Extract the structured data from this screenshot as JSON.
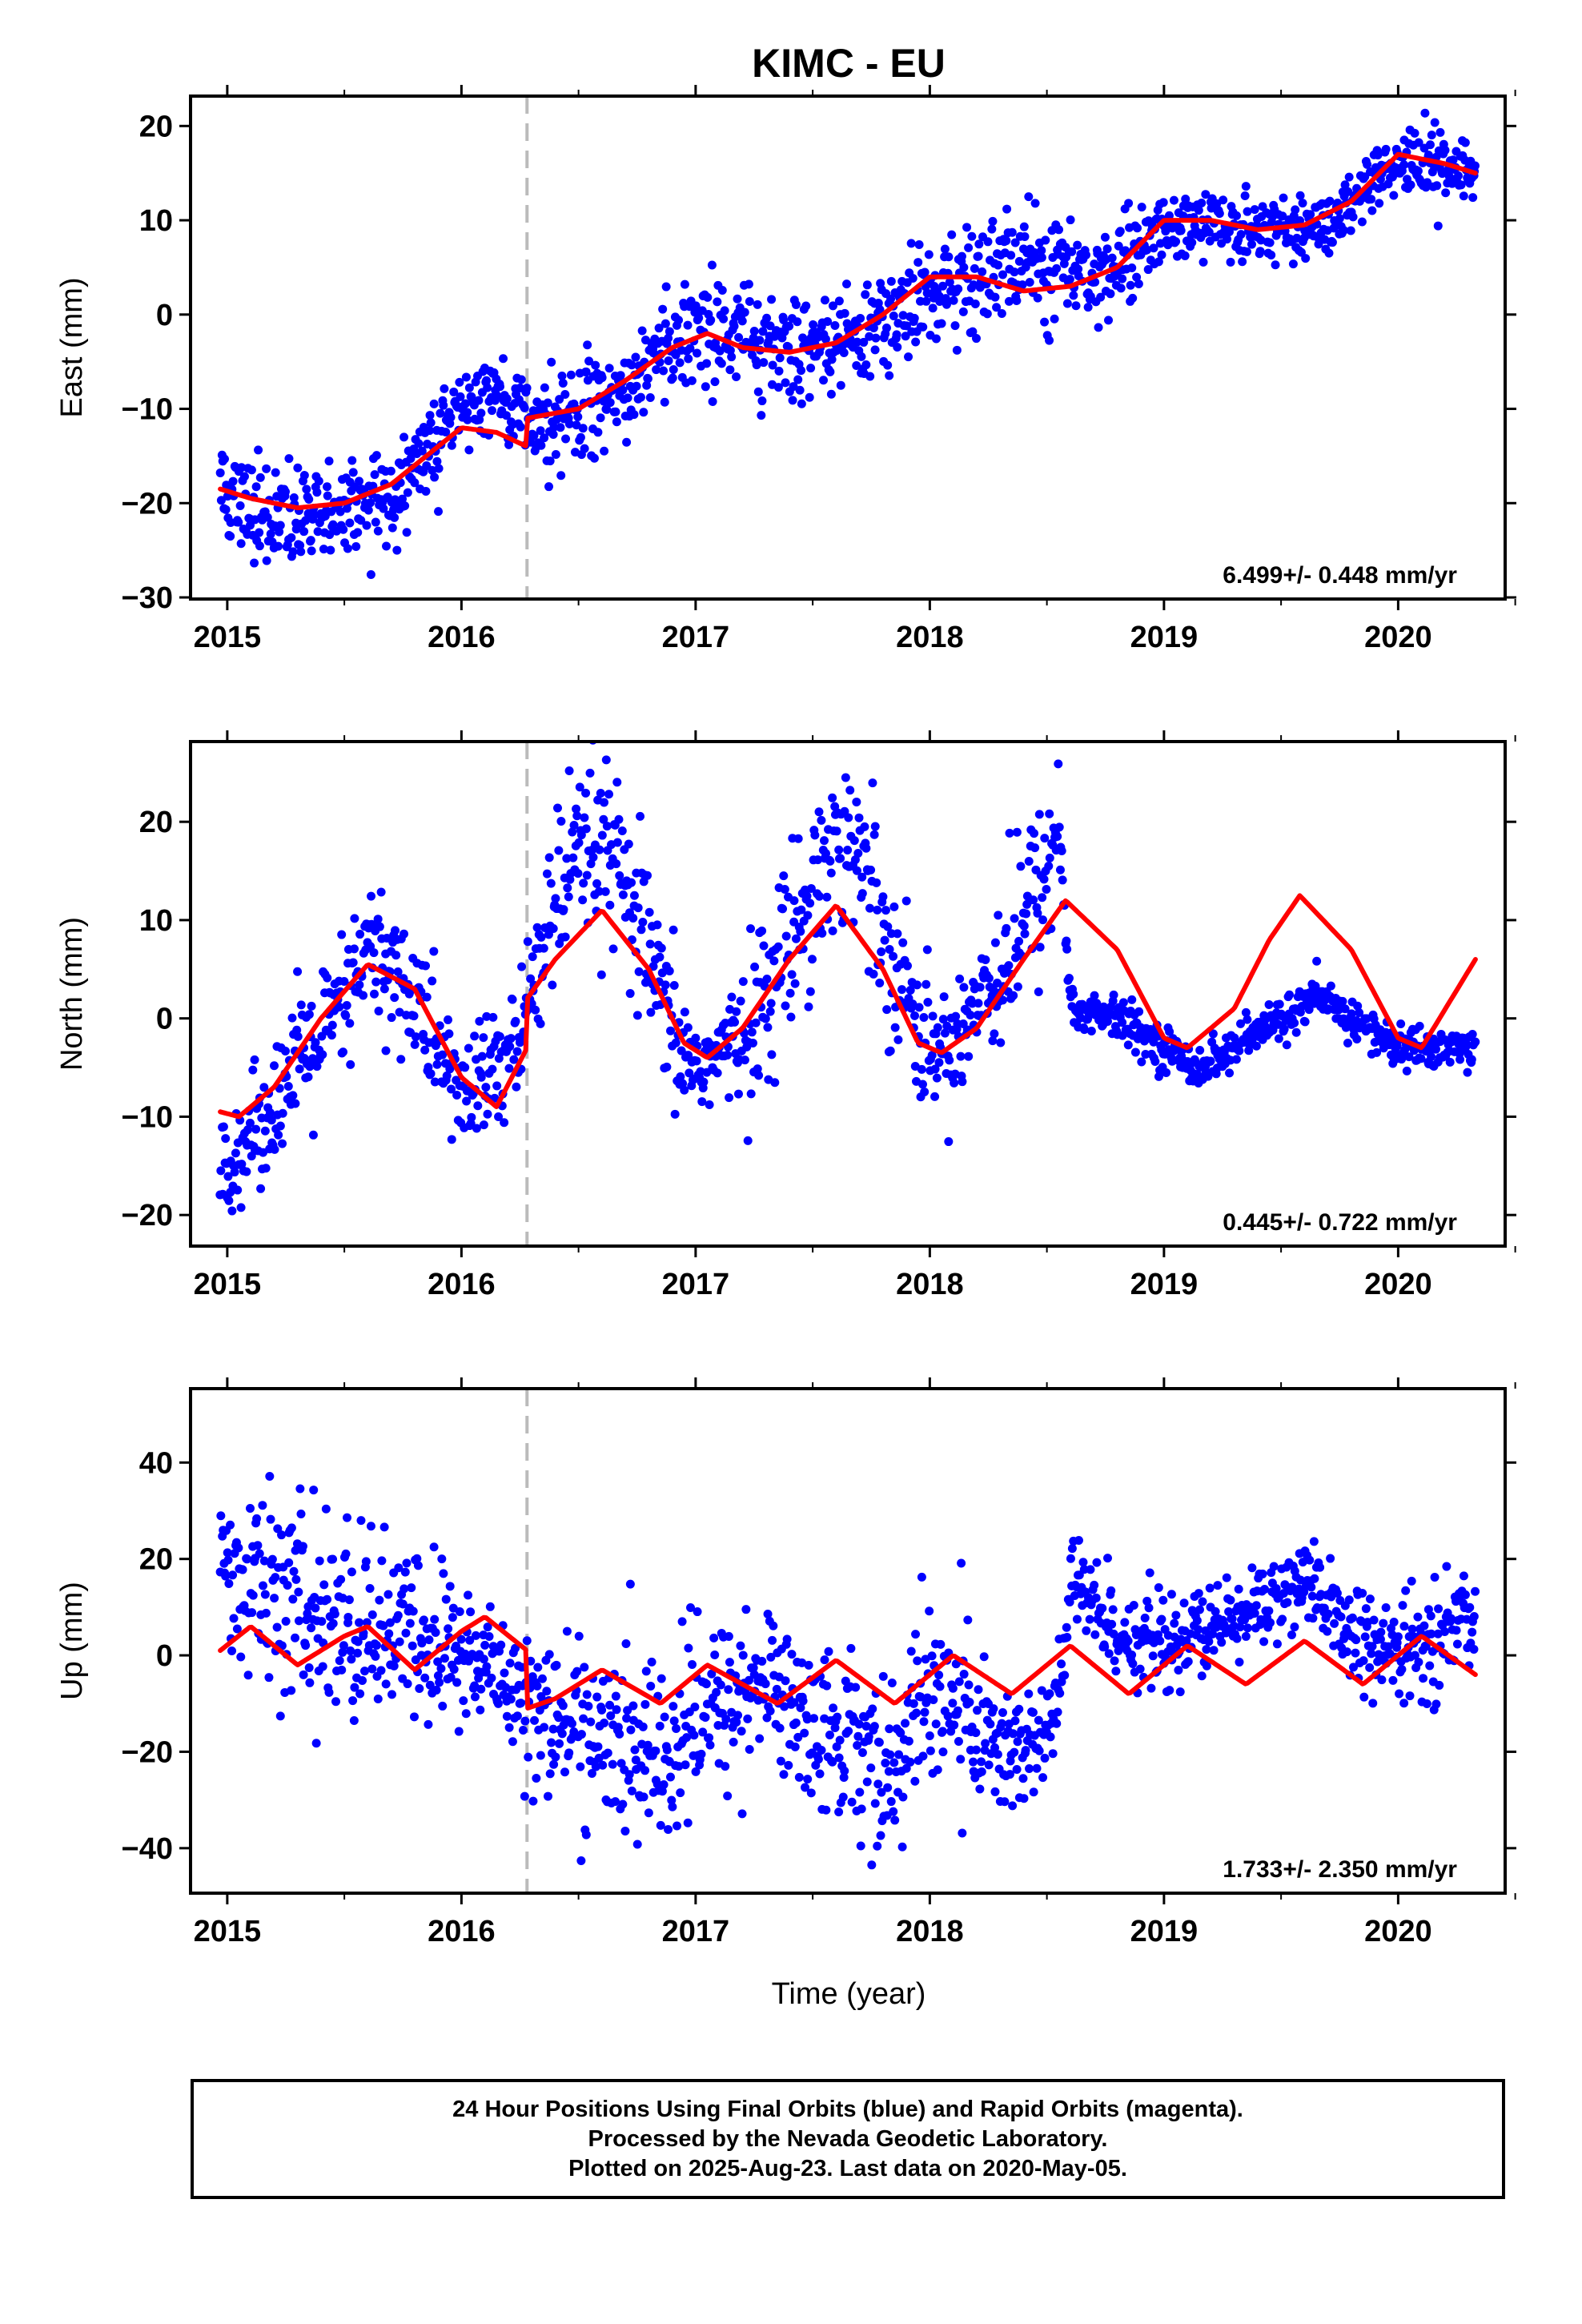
{
  "chart_data": {
    "type": "scatter",
    "title": "KIMC - EU",
    "xlabel": "Time (year)",
    "x_tick_labels": [
      "2015",
      "2016",
      "2017",
      "2018",
      "2019",
      "2020"
    ],
    "xlim": [
      2014.85,
      2020.45
    ],
    "offset_epoch": 2016.28,
    "point_color": "#0000ff",
    "model_color": "#ff0000",
    "offset_line_color": "#bbbbbb",
    "panels": [
      {
        "component": "East",
        "ylabel": "East (mm)",
        "ylim": [
          -30,
          23
        ],
        "y_ticks": [
          -30,
          -20,
          -10,
          0,
          10,
          20
        ],
        "y_tick_labels": [
          "−30",
          "−20",
          "−10",
          "0",
          "10",
          "20"
        ],
        "rate_text": "6.499+/- 0.448 mm/yr",
        "scatter_profile": {
          "x": [
            2014.97,
            2015.1,
            2015.3,
            2015.5,
            2015.7,
            2015.85,
            2016.0,
            2016.15,
            2016.27,
            2016.3,
            2016.5,
            2016.7,
            2016.9,
            2017.05,
            2017.2,
            2017.4,
            2017.6,
            2017.8,
            2018.0,
            2018.2,
            2018.4,
            2018.6,
            2018.8,
            2019.0,
            2019.2,
            2019.4,
            2019.6,
            2019.8,
            2020.0,
            2020.2,
            2020.33
          ],
          "y": [
            -19,
            -21,
            -22,
            -21,
            -20,
            -15,
            -10,
            -9,
            -9,
            -11,
            -11,
            -8,
            -3,
            -1,
            -3,
            -4,
            -3,
            -1,
            2,
            4,
            6,
            5,
            5,
            9,
            10,
            9,
            9,
            11,
            16,
            16,
            14
          ],
          "spread": [
            2.5,
            3,
            3,
            3,
            3,
            3,
            2.5,
            2.5,
            2.5,
            3,
            3,
            3,
            3,
            3,
            3,
            3,
            3,
            3,
            3,
            3,
            3.5,
            3.5,
            2.5,
            2,
            2,
            2,
            2,
            2,
            2,
            2,
            2
          ]
        },
        "model": {
          "x": [
            2014.97,
            2015.1,
            2015.3,
            2015.5,
            2015.7,
            2015.85,
            2016.0,
            2016.15,
            2016.28,
            2016.28,
            2016.5,
            2016.7,
            2016.9,
            2017.05,
            2017.2,
            2017.4,
            2017.6,
            2017.8,
            2018.0,
            2018.2,
            2018.4,
            2018.6,
            2018.8,
            2019.0,
            2019.2,
            2019.4,
            2019.6,
            2019.8,
            2020.0,
            2020.2,
            2020.33
          ],
          "y": [
            -18.5,
            -19.5,
            -20.5,
            -20,
            -18,
            -15,
            -12,
            -12.5,
            -14,
            -11,
            -10,
            -7,
            -3.5,
            -2,
            -3.5,
            -4,
            -3,
            0,
            4,
            4,
            2.5,
            3,
            5,
            10,
            10,
            9,
            9.5,
            12,
            17,
            16,
            15
          ]
        }
      },
      {
        "component": "North",
        "ylabel": "North (mm)",
        "ylim": [
          -23,
          28
        ],
        "y_ticks": [
          -20,
          -10,
          0,
          10,
          20
        ],
        "y_tick_labels": [
          "−20",
          "−10",
          "0",
          "10",
          "20"
        ],
        "rate_text": "0.445+/- 0.722 mm/yr",
        "scatter_profile": {
          "x": [
            2014.97,
            2015.1,
            2015.3,
            2015.5,
            2015.6,
            2015.75,
            2015.9,
            2016.0,
            2016.15,
            2016.27,
            2016.3,
            2016.45,
            2016.6,
            2016.75,
            2016.9,
            2017.0,
            2017.15,
            2017.3,
            2017.5,
            2017.65,
            2017.8,
            2017.95,
            2018.05,
            2018.2,
            2018.35,
            2018.5,
            2018.55,
            2018.6,
            2018.8,
            2019.0,
            2019.15,
            2019.3,
            2019.5,
            2019.65,
            2019.8,
            2020.0,
            2020.15,
            2020.33
          ],
          "y": [
            -15,
            -12,
            -5,
            1,
            7,
            4,
            -3,
            -8,
            -5,
            -2,
            5,
            14,
            18,
            10,
            -2,
            -5,
            -3,
            2,
            14,
            19,
            10,
            -1,
            -4,
            2,
            7,
            15,
            21,
            1,
            0,
            -3,
            -5,
            -3,
            0,
            2,
            0,
            -3,
            -3,
            -3
          ],
          "spread": [
            3,
            3,
            4,
            4,
            4,
            4,
            4,
            3,
            4,
            4,
            5,
            5,
            5,
            5,
            4,
            3,
            3,
            5,
            5,
            5,
            5,
            4,
            3,
            4,
            5,
            5,
            3,
            1.5,
            1.2,
            1.2,
            1.2,
            1.2,
            1.2,
            1.2,
            1.2,
            1.2,
            1.2,
            1.2
          ]
        },
        "model": {
          "x": [
            2014.97,
            2015.05,
            2015.2,
            2015.4,
            2015.6,
            2015.8,
            2016.0,
            2016.15,
            2016.28,
            2016.28,
            2016.4,
            2016.6,
            2016.8,
            2016.95,
            2017.05,
            2017.2,
            2017.4,
            2017.6,
            2017.8,
            2017.95,
            2018.05,
            2018.2,
            2018.4,
            2018.58,
            2018.8,
            2019.0,
            2019.1,
            2019.3,
            2019.45,
            2019.58,
            2019.8,
            2020.0,
            2020.1,
            2020.33
          ],
          "y": [
            -9.5,
            -10,
            -7,
            0,
            5.5,
            3,
            -6,
            -9,
            -3,
            2,
            6,
            11,
            5,
            -2.5,
            -4,
            -1,
            6,
            11.5,
            5,
            -2.5,
            -3.5,
            -1,
            6,
            12,
            7,
            -2,
            -3,
            1,
            8,
            12.5,
            7,
            -2,
            -3,
            6
          ]
        }
      },
      {
        "component": "Up",
        "ylabel": "Up (mm)",
        "ylim": [
          -49,
          55
        ],
        "y_ticks": [
          -40,
          -20,
          0,
          20,
          40
        ],
        "y_tick_labels": [
          "−40",
          "−20",
          "0",
          "20",
          "40"
        ],
        "rate_text": "1.733+/- 2.350 mm/yr",
        "scatter_profile": {
          "x": [
            2014.97,
            2015.1,
            2015.3,
            2015.5,
            2015.7,
            2015.9,
            2016.1,
            2016.27,
            2016.3,
            2016.5,
            2016.7,
            2016.9,
            2017.1,
            2017.3,
            2017.5,
            2017.7,
            2017.85,
            2018.0,
            2018.15,
            2018.3,
            2018.5,
            2018.55,
            2018.6,
            2018.8,
            2019.0,
            2019.2,
            2019.4,
            2019.55,
            2019.7,
            2019.9,
            2020.1,
            2020.33
          ],
          "y": [
            18,
            15,
            10,
            6,
            5,
            2,
            -2,
            -7,
            -12,
            -15,
            -20,
            -20,
            -10,
            -5,
            -15,
            -18,
            -25,
            -5,
            -12,
            -20,
            -18,
            -10,
            15,
            5,
            2,
            5,
            10,
            15,
            10,
            0,
            2,
            8
          ],
          "spread": [
            8,
            10,
            12,
            12,
            10,
            10,
            8,
            8,
            8,
            10,
            10,
            12,
            10,
            8,
            10,
            10,
            10,
            12,
            10,
            8,
            8,
            6,
            6,
            6,
            5,
            5,
            5,
            5,
            5,
            6,
            6,
            6
          ]
        },
        "model": {
          "x": [
            2014.97,
            2015.1,
            2015.3,
            2015.5,
            2015.6,
            2015.8,
            2016.0,
            2016.1,
            2016.28,
            2016.28,
            2016.4,
            2016.6,
            2016.85,
            2017.05,
            2017.35,
            2017.6,
            2017.85,
            2018.1,
            2018.35,
            2018.6,
            2018.85,
            2019.1,
            2019.35,
            2019.6,
            2019.85,
            2020.1,
            2020.33
          ],
          "y": [
            1,
            6,
            -2,
            4,
            6,
            -3,
            5,
            8,
            1,
            -11,
            -9,
            -3,
            -10,
            -2,
            -10,
            -1,
            -10,
            0,
            -8,
            2,
            -8,
            2,
            -6,
            3,
            -6,
            4,
            -4
          ]
        }
      }
    ],
    "footer": {
      "line1": "24 Hour Positions Using Final Orbits (blue) and Rapid Orbits (magenta).",
      "line2": "Processed by the Nevada Geodetic Laboratory.",
      "line3": "Plotted on 2025-Aug-23. Last data on 2020-May-05."
    }
  }
}
